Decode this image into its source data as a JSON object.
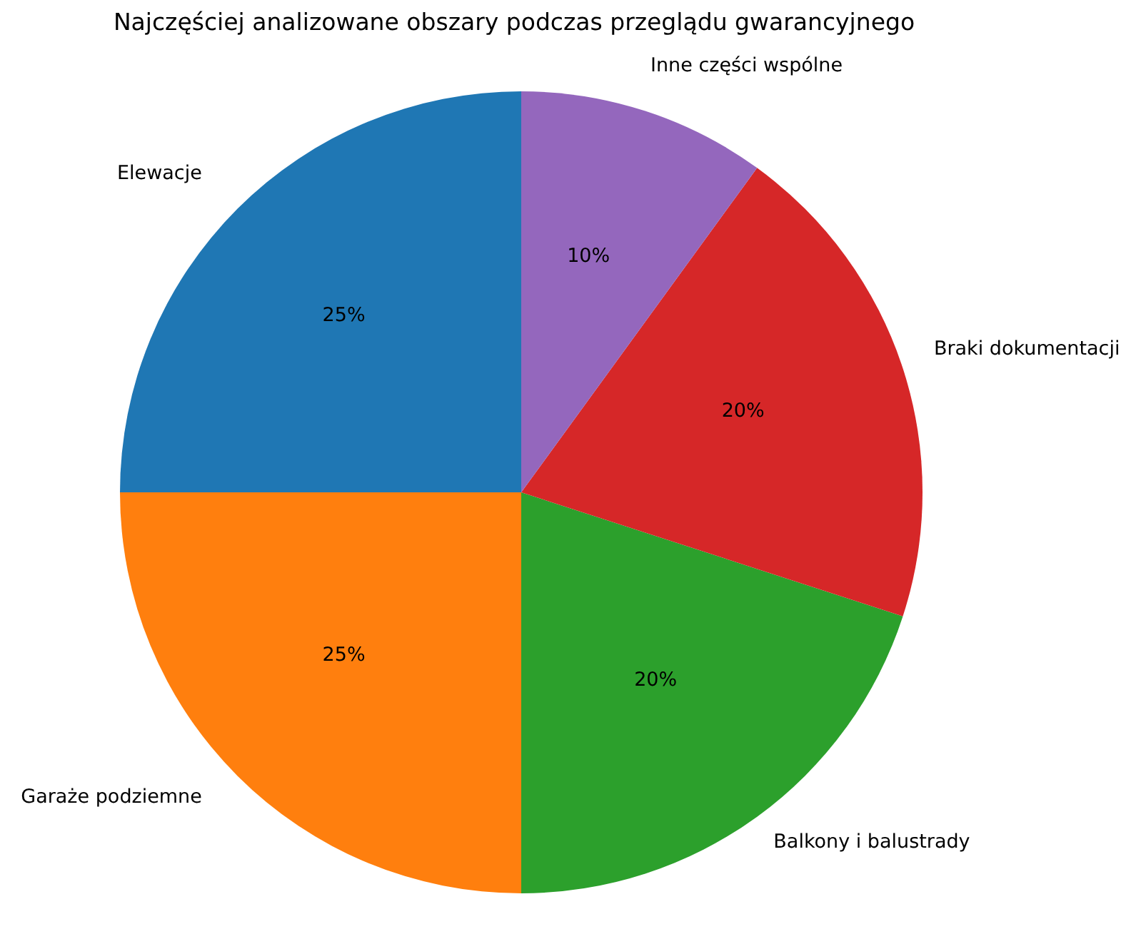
{
  "chart_data": {
    "type": "pie",
    "title": "Najczęściej analizowane obszary podczas przeglądu gwarancyjnego",
    "categories": [
      "Elewacje",
      "Garaże podziemne",
      "Balkony i balustrady",
      "Braki dokumentacji",
      "Inne części wspólne"
    ],
    "values": [
      25,
      25,
      20,
      20,
      10
    ],
    "colors": [
      "#1f77b4",
      "#ff7f0e",
      "#2ca02c",
      "#d62728",
      "#9467bd"
    ],
    "value_labels": [
      "25%",
      "25%",
      "20%",
      "20%",
      "10%"
    ]
  }
}
